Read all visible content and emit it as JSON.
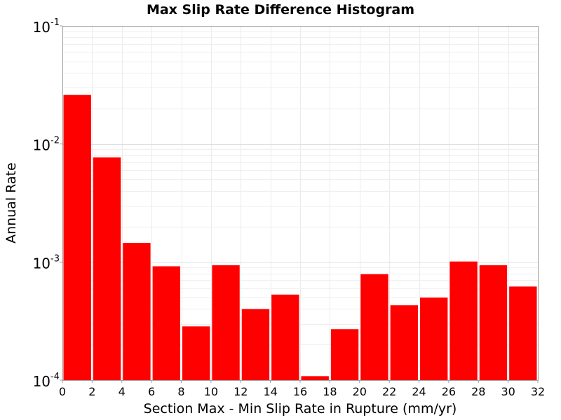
{
  "chart_data": {
    "type": "bar",
    "title": "Max Slip Rate Difference Histogram",
    "xlabel": "Section Max - Min Slip Rate in Rupture (mm/yr)",
    "ylabel": "Annual Rate",
    "y_scale": "log",
    "xlim": [
      0,
      32
    ],
    "ylim": [
      0.0001,
      0.1
    ],
    "x_ticks": [
      "0",
      "2",
      "4",
      "6",
      "8",
      "10",
      "12",
      "14",
      "16",
      "18",
      "20",
      "22",
      "24",
      "26",
      "28",
      "30",
      "32"
    ],
    "y_ticks": [
      {
        "base": "10",
        "exp": "-4"
      },
      {
        "base": "10",
        "exp": "-3"
      },
      {
        "base": "10",
        "exp": "-2"
      },
      {
        "base": "10",
        "exp": "-1"
      }
    ],
    "grid": true,
    "bar_color": "#ff0000",
    "bins": [
      {
        "x0": 0,
        "x1": 2,
        "value": 0.026
      },
      {
        "x0": 2,
        "x1": 4,
        "value": 0.0077
      },
      {
        "x0": 4,
        "x1": 6,
        "value": 0.00145
      },
      {
        "x0": 6,
        "x1": 8,
        "value": 0.00092
      },
      {
        "x0": 8,
        "x1": 10,
        "value": 0.000285
      },
      {
        "x0": 10,
        "x1": 12,
        "value": 0.00094
      },
      {
        "x0": 12,
        "x1": 14,
        "value": 0.0004
      },
      {
        "x0": 14,
        "x1": 16,
        "value": 0.00053
      },
      {
        "x0": 16,
        "x1": 18,
        "value": 0.000108
      },
      {
        "x0": 18,
        "x1": 20,
        "value": 0.00027
      },
      {
        "x0": 20,
        "x1": 22,
        "value": 0.00079
      },
      {
        "x0": 22,
        "x1": 24,
        "value": 0.00043
      },
      {
        "x0": 24,
        "x1": 26,
        "value": 0.0005
      },
      {
        "x0": 26,
        "x1": 28,
        "value": 0.00101
      },
      {
        "x0": 28,
        "x1": 30,
        "value": 0.00094
      },
      {
        "x0": 30,
        "x1": 32,
        "value": 0.00062
      }
    ]
  }
}
